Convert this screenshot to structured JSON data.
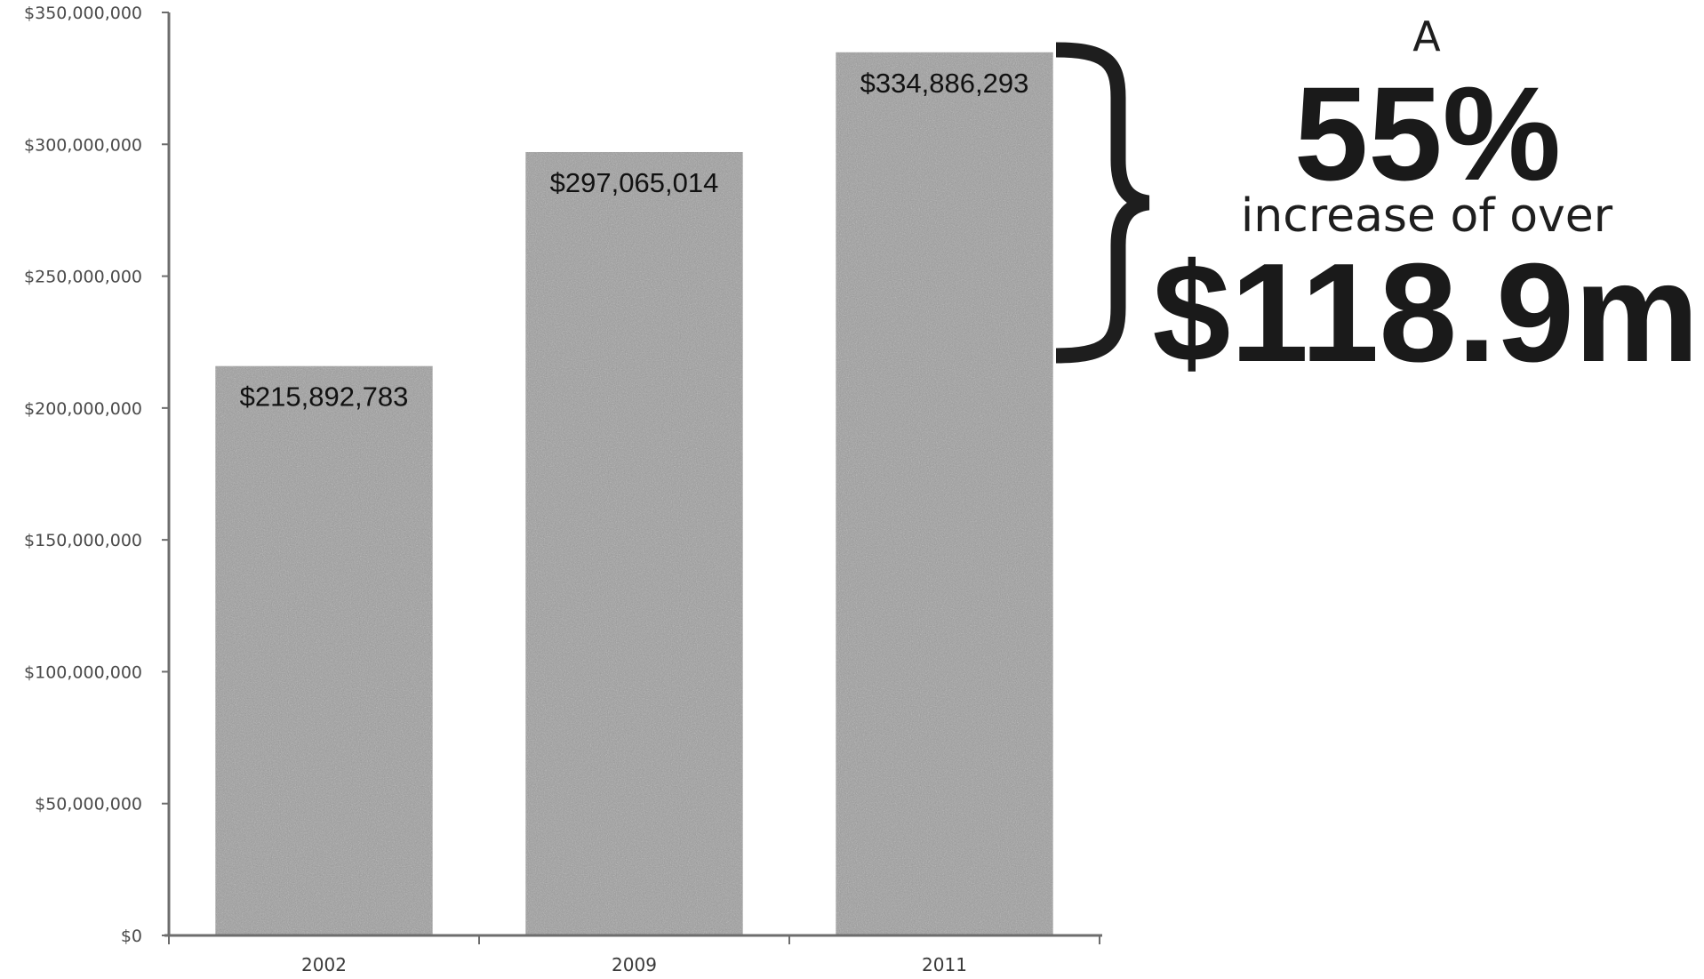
{
  "chart_data": {
    "type": "bar",
    "categories": [
      "2002",
      "2009",
      "2011"
    ],
    "values": [
      215892783,
      297065014,
      334886293
    ],
    "data_labels": [
      "$215,892,783",
      "$297,065,014",
      "$334,886,293"
    ],
    "title": "",
    "xlabel": "",
    "ylabel": "",
    "ylim": [
      0,
      350000000
    ],
    "yticks": [
      0,
      50000000,
      100000000,
      150000000,
      200000000,
      250000000,
      300000000,
      350000000
    ],
    "ytick_labels": [
      "$0",
      "$50,000,000",
      "$100,000,000",
      "$150,000,000",
      "$200,000,000",
      "$250,000,000",
      "$300,000,000",
      "$350,000,000"
    ],
    "grid": false,
    "bar_color": "#9e9e9e",
    "annotation": {
      "line1": "A",
      "percent": "55%",
      "line2": "increase of over",
      "amount": "$118.9m"
    }
  }
}
